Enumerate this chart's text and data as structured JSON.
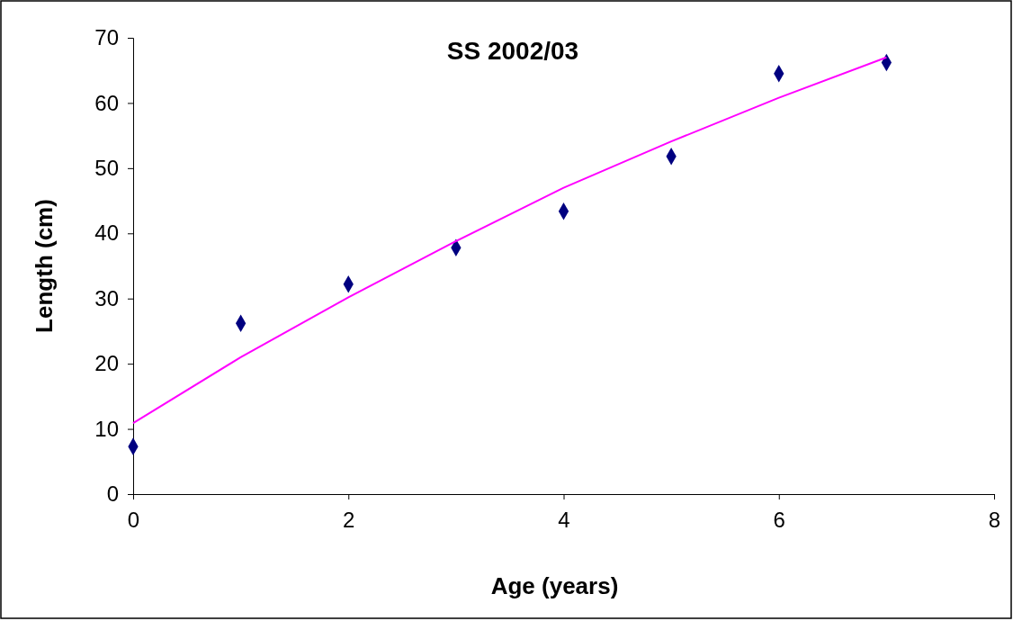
{
  "chart_data": {
    "type": "scatter",
    "title": "SS 2002/03",
    "xlabel": "Age (years)",
    "ylabel": "Length (cm)",
    "xlim": [
      0,
      8
    ],
    "xticks": [
      0,
      2,
      4,
      6,
      8
    ],
    "ylim": [
      0,
      70
    ],
    "yticks": [
      0,
      10,
      20,
      30,
      40,
      50,
      60,
      70
    ],
    "grid": false,
    "series": [
      {
        "color": "#000080",
        "marker": "diamond",
        "x": [
          0,
          1,
          2,
          3,
          4,
          5,
          6,
          7
        ],
        "values": [
          7.3,
          26.2,
          32.2,
          37.8,
          43.4,
          51.8,
          64.5,
          66.2
        ]
      },
      {
        "type": "line",
        "color": "#ff00ff",
        "marker": "none",
        "line_style": "solid",
        "x": [
          0,
          1,
          2,
          3,
          4,
          5,
          6,
          7
        ],
        "values": [
          10.9,
          21.0,
          30.2,
          38.8,
          47.0,
          54.1,
          60.8,
          67.0
        ]
      }
    ]
  }
}
